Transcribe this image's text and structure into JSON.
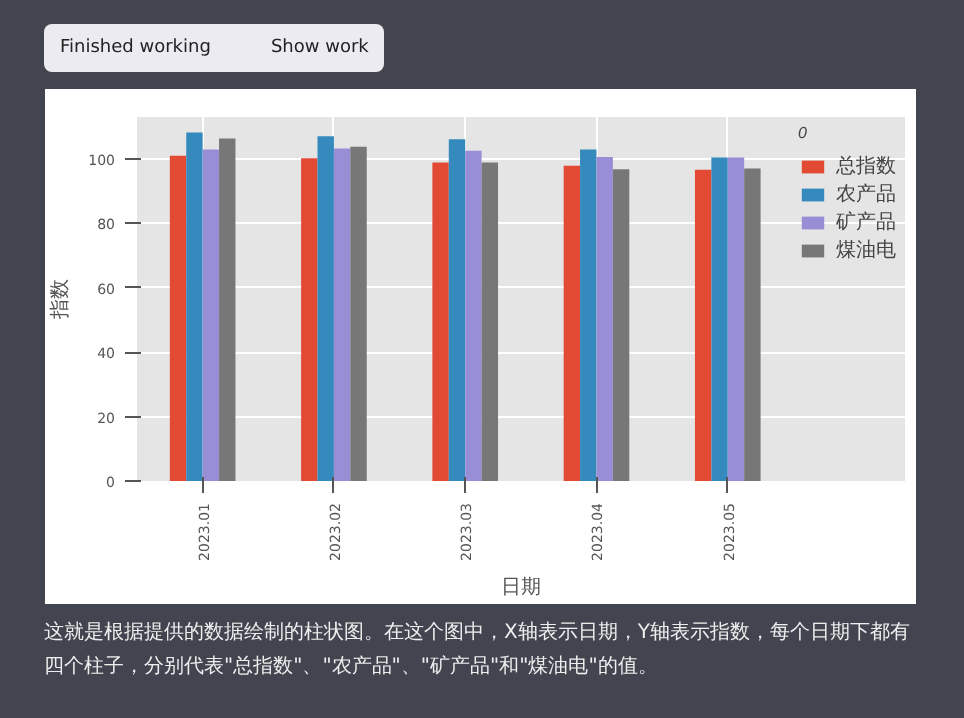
{
  "chart_data": {
    "type": "bar",
    "categories": [
      "2023.01",
      "2023.02",
      "2023.03",
      "2023.04",
      "2023.05"
    ],
    "xlabel": "日期",
    "ylabel": "指数",
    "legend_title": "0",
    "series": [
      {
        "name": "总指数",
        "color": "#e24a33",
        "values": [
          101,
          100.2,
          98.9,
          97.9,
          96.6
        ]
      },
      {
        "name": "农产品",
        "color": "#348abd",
        "values": [
          108.2,
          107,
          106.1,
          102.9,
          100.4
        ]
      },
      {
        "name": "矿产品",
        "color": "#988ed5",
        "values": [
          102.9,
          103.2,
          102.5,
          100.6,
          100.4
        ]
      },
      {
        "name": "煤油电",
        "color": "#777777",
        "values": [
          106.3,
          103.8,
          98.9,
          96.8,
          97
        ]
      }
    ],
    "ylim": [
      0,
      113
    ],
    "yticks": [
      0,
      20,
      40,
      60,
      80,
      100
    ],
    "grid": true,
    "legend": "top right",
    "annotations": [
      "Finished working",
      "Show work",
      "这就是根据提供的数据绘制的柱状图。在这个图中，X轴表示日期，Y轴表示指数，每个日期下都有四个柱子，分别代表\"总指数\"、\"农产品\"、\"矿产品\"和\"煤油电\"的值。"
    ]
  }
}
